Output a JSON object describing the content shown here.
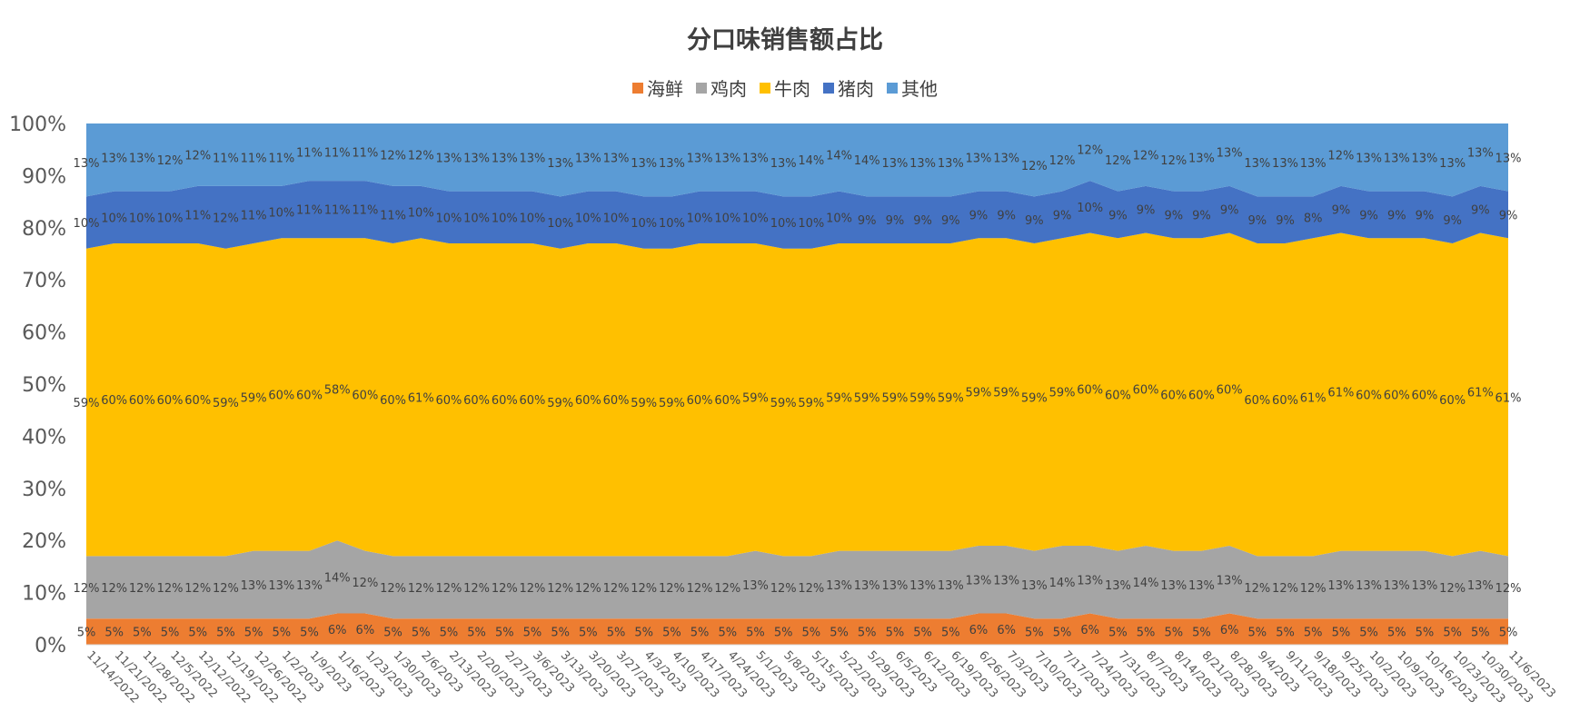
{
  "chart_data": {
    "type": "area",
    "stacked": true,
    "title": "分口味销售额占比",
    "legend_position": "top",
    "ylim": [
      0,
      100
    ],
    "y_ticks": [
      "0%",
      "10%",
      "20%",
      "30%",
      "40%",
      "50%",
      "60%",
      "70%",
      "80%",
      "90%",
      "100%"
    ],
    "categories": [
      "11/14/2022",
      "11/21/2022",
      "11/28/2022",
      "12/5/2022",
      "12/12/2022",
      "12/19/2022",
      "12/26/2022",
      "1/2/2023",
      "1/9/2023",
      "1/16/2023",
      "1/23/2023",
      "1/30/2023",
      "2/6/2023",
      "2/13/2023",
      "2/20/2023",
      "2/27/2023",
      "3/6/2023",
      "3/13/2023",
      "3/20/2023",
      "3/27/2023",
      "4/3/2023",
      "4/10/2023",
      "4/17/2023",
      "4/24/2023",
      "5/1/2023",
      "5/8/2023",
      "5/15/2023",
      "5/22/2023",
      "5/29/2023",
      "6/5/2023",
      "6/12/2023",
      "6/19/2023",
      "6/26/2023",
      "7/3/2023",
      "7/10/2023",
      "7/17/2023",
      "7/24/2023",
      "7/31/2023",
      "8/7/2023",
      "8/14/2023",
      "8/21/2023",
      "8/28/2023",
      "9/4/2023",
      "9/11/2023",
      "9/18/2023",
      "9/25/2023",
      "10/2/2023",
      "10/9/2023",
      "10/16/2023",
      "10/23/2023",
      "10/30/2023",
      "11/6/2023"
    ],
    "series": [
      {
        "name": "海鲜",
        "color": "#ED7D31",
        "values": [
          5,
          5,
          5,
          5,
          5,
          5,
          5,
          5,
          5,
          6,
          6,
          5,
          5,
          5,
          5,
          5,
          5,
          5,
          5,
          5,
          5,
          5,
          5,
          5,
          5,
          5,
          5,
          5,
          5,
          5,
          5,
          5,
          6,
          6,
          5,
          5,
          6,
          5,
          5,
          5,
          5,
          6,
          5,
          5,
          5,
          5,
          5,
          5,
          5,
          5,
          5,
          5
        ]
      },
      {
        "name": "鸡肉",
        "color": "#A5A5A5",
        "values": [
          12,
          12,
          12,
          12,
          12,
          12,
          13,
          13,
          13,
          14,
          12,
          12,
          12,
          12,
          12,
          12,
          12,
          12,
          12,
          12,
          12,
          12,
          12,
          12,
          13,
          12,
          12,
          13,
          13,
          13,
          13,
          13,
          13,
          13,
          13,
          14,
          13,
          13,
          14,
          13,
          13,
          13,
          12,
          12,
          12,
          13,
          13,
          13,
          13,
          12,
          13,
          12
        ]
      },
      {
        "name": "牛肉",
        "color": "#FFC000",
        "values": [
          59,
          60,
          60,
          60,
          60,
          59,
          59,
          60,
          60,
          58,
          60,
          60,
          61,
          60,
          60,
          60,
          60,
          59,
          60,
          60,
          59,
          59,
          60,
          60,
          59,
          59,
          59,
          59,
          59,
          59,
          59,
          59,
          59,
          59,
          59,
          59,
          60,
          60,
          60,
          60,
          60,
          60,
          60,
          60,
          61,
          61,
          60,
          60,
          60,
          60,
          61,
          61
        ]
      },
      {
        "name": "猪肉",
        "color": "#4472C4",
        "values": [
          10,
          10,
          10,
          10,
          11,
          12,
          11,
          10,
          11,
          11,
          11,
          11,
          10,
          10,
          10,
          10,
          10,
          10,
          10,
          10,
          10,
          10,
          10,
          10,
          10,
          10,
          10,
          10,
          9,
          9,
          9,
          9,
          9,
          9,
          9,
          9,
          10,
          9,
          9,
          9,
          9,
          9,
          9,
          9,
          8,
          9,
          9,
          9,
          9,
          9,
          9,
          9
        ]
      },
      {
        "name": "其他",
        "color": "#5B9BD5",
        "values": [
          13,
          13,
          13,
          12,
          12,
          11,
          11,
          11,
          11,
          11,
          11,
          12,
          12,
          13,
          13,
          13,
          13,
          13,
          13,
          13,
          13,
          13,
          13,
          13,
          13,
          13,
          14,
          14,
          14,
          13,
          13,
          13,
          13,
          13,
          12,
          12,
          12,
          12,
          12,
          12,
          13,
          13,
          13,
          13,
          13,
          12,
          13,
          13,
          13,
          13,
          13,
          13
        ]
      }
    ]
  }
}
